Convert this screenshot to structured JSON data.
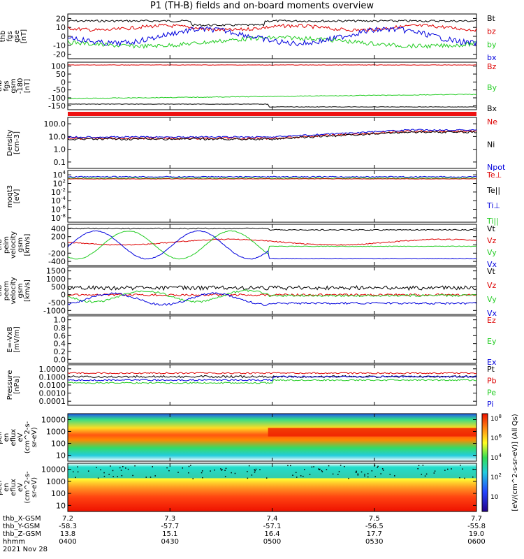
{
  "title": "P1 (TH-B) fields and on-board moments overview",
  "colors": {
    "black": "#000000",
    "red": "#dd0000",
    "green": "#22cc22",
    "blue": "#0000dd",
    "bar": "#ee1111"
  },
  "chart_data": {
    "type": "line",
    "time_axis": {
      "ticks": [
        "0400",
        "0430",
        "0500",
        "0530",
        "0600"
      ],
      "rows": [
        {
          "label": "thb_X-GSM",
          "values": [
            "7.2",
            "7.3",
            "7.4",
            "7.5",
            "7.7"
          ]
        },
        {
          "label": "thb_Y-GSM",
          "values": [
            "-58.3",
            "-57.7",
            "-57.1",
            "-56.5",
            "-55.8"
          ]
        },
        {
          "label": "thb_Z-GSM",
          "values": [
            "13.8",
            "15.1",
            "16.4",
            "17.7",
            "19.0"
          ]
        },
        {
          "label": "hhmm",
          "values": [
            "0400",
            "0430",
            "0500",
            "0530",
            "0600"
          ]
        }
      ],
      "date": "2021 Nov 28"
    },
    "panels": [
      {
        "id": "fgs",
        "ylabel": [
          "thb",
          "fgs",
          "gse",
          "[nT]"
        ],
        "scale": "linear",
        "ylim": [
          -20,
          20
        ],
        "ticks": [
          "20",
          "10",
          "0",
          "-10",
          "-20"
        ],
        "series": [
          {
            "name": "Bt",
            "color": "black"
          },
          {
            "name": "bz",
            "color": "red"
          },
          {
            "name": "by",
            "color": "green"
          },
          {
            "name": "bx",
            "color": "blue"
          }
        ]
      },
      {
        "id": "fgs-gsm",
        "ylabel": [
          "thb",
          "fgs",
          "gsm",
          "-180",
          "[nT]"
        ],
        "scale": "linear",
        "ylim": [
          -180,
          100
        ],
        "ticks": [
          "100",
          "50",
          "0",
          "-50",
          "-100",
          "-150"
        ],
        "series": [
          {
            "name": "Bz",
            "color": "red"
          },
          {
            "name": "By",
            "color": "green"
          },
          {
            "name": "Bx",
            "color": "black"
          }
        ]
      },
      {
        "id": "density",
        "ylabel": [
          "Density",
          "[cm-3]"
        ],
        "scale": "log",
        "ylim": [
          0.03,
          300
        ],
        "ticks": [
          "100.0",
          "10.0",
          "1.0",
          "0.1"
        ],
        "series": [
          {
            "name": "Ne",
            "color": "red"
          },
          {
            "name": "Ni",
            "color": "black"
          },
          {
            "name": "Npot",
            "color": "blue"
          }
        ]
      },
      {
        "id": "temperature",
        "ylabel": [
          "moqt3",
          "[eV]"
        ],
        "scale": "log",
        "ylim": [
          -10,
          4
        ],
        "ticks": [
          "10",
          "10",
          "10",
          "10",
          "10",
          "10"
        ],
        "tick_exponents": [
          "4",
          "2",
          "-2",
          "-4",
          "-6",
          "-8"
        ],
        "series": [
          {
            "name": "Te⊥",
            "color": "red"
          },
          {
            "name": "Te||",
            "color": "black"
          },
          {
            "name": "Ti⊥",
            "color": "blue"
          },
          {
            "name": "Ti||",
            "color": "green"
          }
        ]
      },
      {
        "id": "peim-velocity",
        "ylabel": [
          "thb",
          "peim",
          "velocity",
          "gsm",
          "[km/s]"
        ],
        "scale": "linear",
        "ylim": [
          -400,
          400
        ],
        "ticks": [
          "400",
          "200",
          "0",
          "-200",
          "-400"
        ],
        "series": [
          {
            "name": "Vt",
            "color": "black"
          },
          {
            "name": "Vz",
            "color": "red"
          },
          {
            "name": "Vy",
            "color": "green"
          },
          {
            "name": "Vx",
            "color": "blue"
          }
        ]
      },
      {
        "id": "peem-velocity",
        "ylabel": [
          "thb",
          "peem",
          "velocity",
          "gsm",
          "[km/s]"
        ],
        "scale": "linear",
        "ylim": [
          -1000,
          1500
        ],
        "ticks": [
          "1500",
          "1000",
          "500",
          "0",
          "-500",
          "-1000"
        ],
        "series": [
          {
            "name": "Vt",
            "color": "black"
          },
          {
            "name": "Vz",
            "color": "red"
          },
          {
            "name": "Vy",
            "color": "green"
          },
          {
            "name": "Vx",
            "color": "blue"
          }
        ]
      },
      {
        "id": "efield",
        "ylabel": [
          "E=-VxB",
          "[mV/m]"
        ],
        "scale": "linear",
        "ylim": [
          0,
          1
        ],
        "ticks": [
          "1.0",
          "0.8",
          "0.6",
          "0.4",
          "0.2",
          "0.0"
        ],
        "series": [
          {
            "name": "Ez",
            "color": "red"
          },
          {
            "name": "Ey",
            "color": "green"
          },
          {
            "name": "Ex",
            "color": "blue"
          }
        ]
      },
      {
        "id": "pressure",
        "ylabel": [
          "Pressure",
          "[nPa]"
        ],
        "scale": "log",
        "ylim": [
          0.0002,
          1
        ],
        "ticks": [
          "1.0000",
          "0.1000",
          "0.0100",
          "0.0010",
          "0.0001"
        ],
        "series": [
          {
            "name": "Pt",
            "color": "black"
          },
          {
            "name": "Pb",
            "color": "red"
          },
          {
            "name": "Pe",
            "color": "green"
          },
          {
            "name": "Pi",
            "color": "blue"
          }
        ]
      },
      {
        "id": "peir-spec",
        "ylabel": [
          "thb",
          "peir",
          "en",
          "eflux",
          "eV",
          "(cm^2-s-",
          "sr-eV)"
        ],
        "scale": "log",
        "ticks": [
          "10000",
          "1000",
          "100",
          "10"
        ]
      },
      {
        "id": "peer-spec",
        "ylabel": [
          "thb",
          "peer",
          "en",
          "eflux",
          "eV",
          "(cm^2-s-",
          "sr-eV)"
        ],
        "scale": "log",
        "ticks": [
          "10000",
          "1000",
          "100",
          "10"
        ]
      }
    ],
    "colorbar": {
      "title": "[eV/(cm^2-s-sr-eV)] (All Qs)",
      "ticks": [
        "10",
        "10",
        "10",
        "10",
        "10"
      ],
      "exponents": [
        "8",
        "6",
        "4",
        "2",
        ""
      ]
    }
  }
}
